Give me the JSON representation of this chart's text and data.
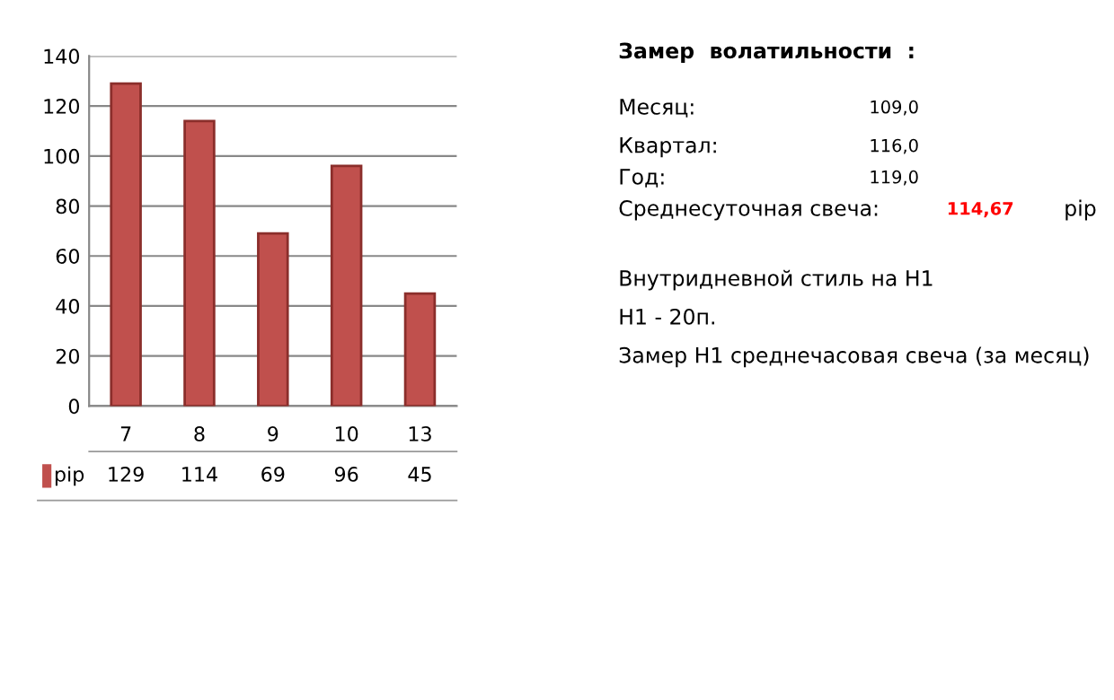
{
  "chart_data": {
    "type": "bar",
    "categories": [
      "7",
      "8",
      "9",
      "10",
      "13"
    ],
    "series": [
      {
        "name": "pip",
        "color": "#c0504d",
        "values": [
          129,
          114,
          69,
          96,
          45
        ]
      }
    ],
    "ylim": [
      0,
      140
    ],
    "yticks": [
      0,
      20,
      40,
      60,
      80,
      100,
      120,
      140
    ],
    "grid": "y",
    "data_labels": true,
    "legend": "bottom",
    "annotations": [
      "Замер  волатильности  :",
      "Месяц:",
      "109,0",
      "Квартал:",
      "116,0",
      "Год:",
      "119,0",
      "Среднесуточная свеча:",
      "114,67",
      "pip",
      "Внутридневной стиль на H1",
      "H1 - 20п.",
      "Замер H1 среднечасовая свеча (за месяц)"
    ]
  }
}
